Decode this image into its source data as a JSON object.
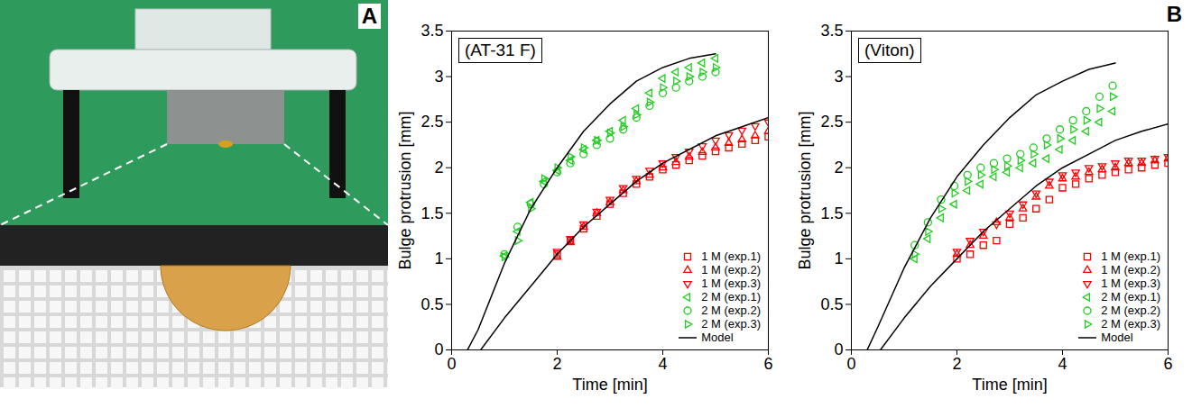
{
  "figure_labels": [
    "A",
    "B"
  ],
  "chart_data": [
    {
      "type": "scatter",
      "title": "(AT-31 F)",
      "x_label": "Time [min]",
      "y_label": "Bulge protrusion [mm]",
      "xlim": [
        0,
        6
      ],
      "xticks": [
        0,
        2,
        4,
        6
      ],
      "ylim": [
        0,
        3.5
      ],
      "yticks": [
        0,
        0.5,
        1,
        1.5,
        2,
        2.5,
        3,
        3.5
      ],
      "grid": false,
      "legend": "bottom-right",
      "series": [
        {
          "name": "1 M (exp.1)",
          "color": "#ff0000",
          "marker": "square",
          "type": "scatter",
          "x": [
            2,
            2.25,
            2.5,
            2.75,
            3,
            3.25,
            3.5,
            3.75,
            4,
            4.25,
            4.5,
            4.75,
            5,
            5.25,
            5.5,
            5.75,
            6
          ],
          "values": [
            1.05,
            1.2,
            1.33,
            1.47,
            1.6,
            1.72,
            1.82,
            1.9,
            1.98,
            2.03,
            2.08,
            2.13,
            2.18,
            2.22,
            2.26,
            2.3,
            2.34
          ]
        },
        {
          "name": "1 M (exp.2)",
          "color": "#ff0000",
          "marker": "triangle-up",
          "type": "scatter",
          "x": [
            2,
            2.25,
            2.5,
            2.75,
            3,
            3.25,
            3.5,
            3.75,
            4,
            4.25,
            4.5,
            4.75,
            5,
            5.25,
            5.5,
            5.75,
            6
          ],
          "values": [
            1.02,
            1.18,
            1.35,
            1.5,
            1.62,
            1.75,
            1.85,
            1.92,
            2.0,
            2.06,
            2.12,
            2.17,
            2.22,
            2.27,
            2.31,
            2.35,
            2.4
          ]
        },
        {
          "name": "1 M (exp.3)",
          "color": "#ff0000",
          "marker": "triangle-down",
          "type": "scatter",
          "x": [
            2,
            2.25,
            2.5,
            2.75,
            3,
            3.25,
            3.5,
            3.75,
            4,
            4.25,
            4.5,
            4.75,
            5,
            5.25,
            5.5,
            5.75,
            6
          ],
          "values": [
            1.08,
            1.22,
            1.38,
            1.52,
            1.65,
            1.78,
            1.88,
            1.97,
            2.05,
            2.12,
            2.18,
            2.24,
            2.3,
            2.36,
            2.41,
            2.46,
            2.5
          ]
        },
        {
          "name": "2 M (exp.1)",
          "color": "#22cc22",
          "marker": "triangle-left",
          "type": "scatter",
          "x": [
            1,
            1.25,
            1.5,
            1.75,
            2,
            2.25,
            2.5,
            2.75,
            3,
            3.25,
            3.5,
            3.75,
            4,
            4.25,
            4.5,
            4.75,
            5
          ],
          "values": [
            1.03,
            1.3,
            1.62,
            1.85,
            1.97,
            2.08,
            2.2,
            2.3,
            2.4,
            2.52,
            2.65,
            2.82,
            2.98,
            3.05,
            3.1,
            3.15,
            3.2
          ]
        },
        {
          "name": "2 M (exp.2)",
          "color": "#22cc22",
          "marker": "circle",
          "type": "scatter",
          "x": [
            1,
            1.25,
            1.5,
            1.75,
            2,
            2.25,
            2.5,
            2.75,
            3,
            3.25,
            3.5,
            3.75,
            4,
            4.25,
            4.5,
            4.75,
            5
          ],
          "values": [
            1.05,
            1.35,
            1.6,
            1.82,
            1.95,
            2.05,
            2.15,
            2.25,
            2.32,
            2.42,
            2.55,
            2.68,
            2.82,
            2.88,
            2.95,
            3.0,
            3.05
          ]
        },
        {
          "name": "2 M (exp.3)",
          "color": "#22cc22",
          "marker": "triangle-right",
          "type": "scatter",
          "x": [
            1,
            1.25,
            1.5,
            1.75,
            2,
            2.25,
            2.5,
            2.75,
            3,
            3.25,
            3.5,
            3.75,
            4,
            4.25,
            4.5,
            4.75,
            5
          ],
          "values": [
            1.02,
            1.2,
            1.55,
            1.88,
            2.0,
            2.12,
            2.22,
            2.3,
            2.38,
            2.45,
            2.58,
            2.72,
            2.88,
            2.95,
            3.0,
            3.05,
            3.1
          ]
        },
        {
          "name": "Model",
          "color": "#000000",
          "type": "line",
          "line_style": "solid",
          "x": [
            0.3,
            0.5,
            1,
            1.5,
            2,
            2.5,
            3,
            3.5,
            4,
            4.5,
            5,
            null,
            0.55,
            1,
            1.5,
            2,
            2.5,
            3,
            3.5,
            4,
            4.5,
            5,
            5.5,
            6
          ],
          "values": [
            0,
            0.22,
            0.95,
            1.55,
            2.0,
            2.4,
            2.7,
            2.95,
            3.1,
            3.2,
            3.25,
            null,
            0,
            0.35,
            0.7,
            1.05,
            1.35,
            1.6,
            1.85,
            2.05,
            2.2,
            2.35,
            2.45,
            2.55
          ]
        }
      ]
    },
    {
      "type": "scatter",
      "title": "(Viton)",
      "x_label": "Time [min]",
      "y_label": "Bulge protrusion [mm]",
      "xlim": [
        0,
        6
      ],
      "xticks": [
        0,
        2,
        4,
        6
      ],
      "ylim": [
        0,
        3.5
      ],
      "yticks": [
        0,
        0.5,
        1,
        1.5,
        2,
        2.5,
        3,
        3.5
      ],
      "grid": false,
      "legend": "bottom-right",
      "series": [
        {
          "name": "1 M (exp.1)",
          "color": "#ff0000",
          "marker": "square",
          "type": "scatter",
          "x": [
            2,
            2.25,
            2.5,
            2.75,
            3,
            3.25,
            3.5,
            3.75,
            4,
            4.25,
            4.5,
            4.75,
            5,
            5.25,
            5.5,
            5.75,
            6
          ],
          "values": [
            1.0,
            1.05,
            1.15,
            1.2,
            1.38,
            1.45,
            1.55,
            1.65,
            1.78,
            1.82,
            1.88,
            1.92,
            1.95,
            1.98,
            2.0,
            2.03,
            2.05
          ]
        },
        {
          "name": "1 M (exp.2)",
          "color": "#ff0000",
          "marker": "triangle-up",
          "type": "scatter",
          "x": [
            2,
            2.25,
            2.5,
            2.75,
            3,
            3.25,
            3.5,
            3.75,
            4,
            4.25,
            4.5,
            4.75,
            5,
            5.25,
            5.5,
            5.75,
            6
          ],
          "values": [
            1.05,
            1.15,
            1.25,
            1.4,
            1.45,
            1.55,
            1.68,
            1.8,
            1.88,
            1.9,
            1.95,
            1.98,
            2.0,
            2.05,
            2.05,
            2.08,
            2.1
          ]
        },
        {
          "name": "1 M (exp.3)",
          "color": "#ff0000",
          "marker": "triangle-down",
          "type": "scatter",
          "x": [
            2,
            2.25,
            2.5,
            2.75,
            3,
            3.25,
            3.5,
            3.75,
            4,
            4.25,
            4.5,
            4.75,
            5,
            5.25,
            5.5,
            5.75,
            6
          ],
          "values": [
            1.08,
            1.2,
            1.3,
            1.38,
            1.5,
            1.6,
            1.72,
            1.85,
            1.92,
            1.95,
            2.0,
            2.02,
            2.05,
            2.08,
            2.08,
            2.1,
            2.12
          ]
        },
        {
          "name": "2 M (exp.1)",
          "color": "#22cc22",
          "marker": "triangle-left",
          "type": "scatter",
          "x": [
            1.2,
            1.45,
            1.7,
            1.95,
            2.2,
            2.45,
            2.7,
            2.95,
            3.2,
            3.45,
            3.7,
            3.95,
            4.2,
            4.45,
            4.7,
            4.95
          ],
          "values": [
            1.0,
            1.22,
            1.45,
            1.6,
            1.75,
            1.82,
            1.9,
            1.95,
            2.0,
            2.05,
            2.1,
            2.2,
            2.3,
            2.4,
            2.5,
            2.62
          ]
        },
        {
          "name": "2 M (exp.2)",
          "color": "#22cc22",
          "marker": "circle",
          "type": "scatter",
          "x": [
            1.2,
            1.45,
            1.7,
            1.95,
            2.2,
            2.45,
            2.7,
            2.95,
            3.2,
            3.45,
            3.7,
            3.95,
            4.2,
            4.45,
            4.7,
            4.95
          ],
          "values": [
            1.15,
            1.4,
            1.65,
            1.8,
            1.92,
            2.0,
            2.05,
            2.1,
            2.15,
            2.22,
            2.32,
            2.42,
            2.52,
            2.62,
            2.78,
            2.9
          ]
        },
        {
          "name": "2 M (exp.3)",
          "color": "#22cc22",
          "marker": "triangle-right",
          "type": "scatter",
          "x": [
            1.2,
            1.45,
            1.7,
            1.95,
            2.2,
            2.45,
            2.7,
            2.95,
            3.2,
            3.45,
            3.7,
            3.95,
            4.2,
            4.45,
            4.7,
            4.95
          ],
          "values": [
            1.05,
            1.3,
            1.55,
            1.72,
            1.85,
            1.92,
            1.98,
            2.02,
            2.08,
            2.15,
            2.25,
            2.32,
            2.42,
            2.52,
            2.65,
            2.78
          ]
        },
        {
          "name": "Model",
          "color": "#000000",
          "type": "line",
          "line_style": "solid",
          "x": [
            0.3,
            0.5,
            1,
            1.5,
            2,
            2.5,
            3,
            3.5,
            4,
            4.5,
            5,
            null,
            0.55,
            1,
            1.5,
            2,
            2.5,
            3,
            3.5,
            4,
            4.5,
            5,
            5.5,
            6
          ],
          "values": [
            0,
            0.25,
            0.9,
            1.45,
            1.9,
            2.25,
            2.55,
            2.8,
            2.95,
            3.08,
            3.15,
            null,
            0,
            0.35,
            0.7,
            1.0,
            1.3,
            1.55,
            1.8,
            2.0,
            2.15,
            2.3,
            2.4,
            2.48
          ]
        }
      ]
    }
  ]
}
